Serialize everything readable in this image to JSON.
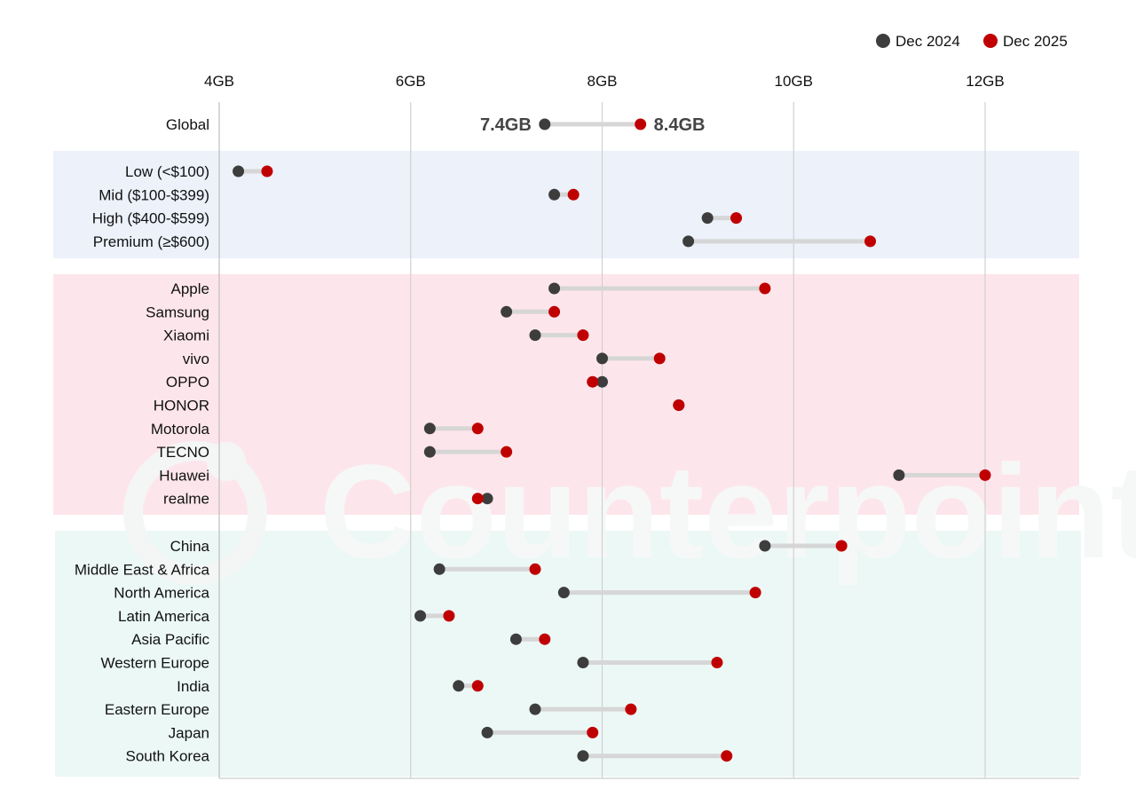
{
  "legend": [
    {
      "name": "Dec 2024",
      "color": "#3d3d3d"
    },
    {
      "name": "Dec 2025",
      "color": "#c00000"
    }
  ],
  "watermark": "Counterpoint",
  "group_colors": {
    "price": "#ecf1fa",
    "brand": "#fde6eb",
    "region": "#ecf8f6"
  },
  "chart_data": {
    "type": "dumbbell",
    "x_ticks": [
      "4GB",
      "6GB",
      "8GB",
      "10GB",
      "12GB"
    ],
    "xlim": [
      4,
      12
    ],
    "unit": "GB",
    "series": [
      {
        "name": "Dec 2024",
        "color": "#3d3d3d"
      },
      {
        "name": "Dec 2025",
        "color": "#c00000"
      }
    ],
    "global": {
      "category": "Global",
      "v2024": 7.4,
      "v2025": 8.4,
      "label2024": "7.4GB",
      "label2025": "8.4GB"
    },
    "groups": [
      {
        "key": "price",
        "rows": [
          {
            "category": "Low (<$100)",
            "v2024": 4.2,
            "v2025": 4.5
          },
          {
            "category": "Mid ($100-$399)",
            "v2024": 7.5,
            "v2025": 7.7
          },
          {
            "category": "High ($400-$599)",
            "v2024": 9.1,
            "v2025": 9.4
          },
          {
            "category": "Premium (≥$600)",
            "v2024": 8.9,
            "v2025": 10.8
          }
        ]
      },
      {
        "key": "brand",
        "rows": [
          {
            "category": "Apple",
            "v2024": 7.5,
            "v2025": 9.7
          },
          {
            "category": "Samsung",
            "v2024": 7.0,
            "v2025": 7.5
          },
          {
            "category": "Xiaomi",
            "v2024": 7.3,
            "v2025": 7.8
          },
          {
            "category": "vivo",
            "v2024": 8.0,
            "v2025": 8.6
          },
          {
            "category": "OPPO",
            "v2024": 8.0,
            "v2025": 7.9
          },
          {
            "category": "HONOR",
            "v2024": 8.8,
            "v2025": 8.8
          },
          {
            "category": "Motorola",
            "v2024": 6.2,
            "v2025": 6.7
          },
          {
            "category": "TECNO",
            "v2024": 6.2,
            "v2025": 7.0
          },
          {
            "category": "Huawei",
            "v2024": 11.1,
            "v2025": 12.0
          },
          {
            "category": "realme",
            "v2024": 6.8,
            "v2025": 6.7
          }
        ]
      },
      {
        "key": "region",
        "rows": [
          {
            "category": "China",
            "v2024": 9.7,
            "v2025": 10.5
          },
          {
            "category": "Middle East & Africa",
            "v2024": 6.3,
            "v2025": 7.3
          },
          {
            "category": "North America",
            "v2024": 7.6,
            "v2025": 9.6
          },
          {
            "category": "Latin America",
            "v2024": 6.1,
            "v2025": 6.4
          },
          {
            "category": "Asia Pacific",
            "v2024": 7.1,
            "v2025": 7.4
          },
          {
            "category": "Western Europe",
            "v2024": 7.8,
            "v2025": 9.2
          },
          {
            "category": "India",
            "v2024": 6.5,
            "v2025": 6.7
          },
          {
            "category": "Eastern Europe",
            "v2024": 7.3,
            "v2025": 8.3
          },
          {
            "category": "Japan",
            "v2024": 6.8,
            "v2025": 7.9
          },
          {
            "category": "South Korea",
            "v2024": 7.8,
            "v2025": 9.3
          }
        ]
      }
    ]
  }
}
